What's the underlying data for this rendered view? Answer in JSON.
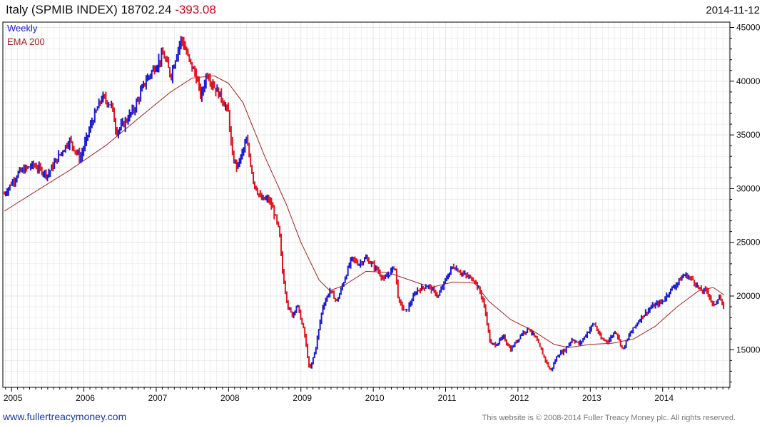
{
  "header": {
    "title": "Italy (SPMIB INDEX)",
    "last": "18702.24",
    "change": "-393.08",
    "date": "2014-11-12"
  },
  "footer": {
    "site": "www.fullertreacymoney.com",
    "copyright": "This website is © 2008-2014 Fuller Treacy Money plc. All rights reserved."
  },
  "colors": {
    "up": "#1a1ad6",
    "down": "#e0141e",
    "ema": "#a82020",
    "grid": "#e4e4e4",
    "axis": "#000000"
  },
  "chart_data": {
    "type": "line",
    "legend": [
      "Weekly",
      "EMA 200"
    ],
    "legend_position": "top-left",
    "x_ticks": [
      "2005",
      "2006",
      "2007",
      "2008",
      "2009",
      "2010",
      "2011",
      "2012",
      "2013",
      "2014"
    ],
    "y_ticks": [
      "15000",
      "20000",
      "25000",
      "30000",
      "35000",
      "40000",
      "45000"
    ],
    "xlim": [
      2004.88,
      2014.93
    ],
    "ylim": [
      11500,
      45500
    ],
    "grid": true,
    "series": [
      {
        "name": "Weekly",
        "style": "ohlc",
        "points": [
          [
            2004.9,
            29500
          ],
          [
            2005.1,
            31500
          ],
          [
            2005.3,
            32200
          ],
          [
            2005.5,
            31300
          ],
          [
            2005.65,
            33000
          ],
          [
            2005.8,
            34500
          ],
          [
            2005.95,
            32800
          ],
          [
            2006.1,
            36000
          ],
          [
            2006.25,
            38500
          ],
          [
            2006.38,
            37800
          ],
          [
            2006.45,
            35300
          ],
          [
            2006.55,
            36000
          ],
          [
            2006.7,
            37500
          ],
          [
            2006.85,
            40000
          ],
          [
            2006.95,
            41000
          ],
          [
            2007.1,
            42500
          ],
          [
            2007.2,
            40500
          ],
          [
            2007.3,
            43000
          ],
          [
            2007.35,
            44000
          ],
          [
            2007.45,
            42000
          ],
          [
            2007.55,
            40500
          ],
          [
            2007.62,
            38500
          ],
          [
            2007.7,
            40800
          ],
          [
            2007.8,
            39500
          ],
          [
            2007.9,
            38500
          ],
          [
            2008.0,
            37000
          ],
          [
            2008.05,
            33000
          ],
          [
            2008.12,
            32000
          ],
          [
            2008.25,
            34500
          ],
          [
            2008.35,
            30500
          ],
          [
            2008.45,
            29000
          ],
          [
            2008.55,
            29000
          ],
          [
            2008.62,
            28000
          ],
          [
            2008.7,
            26000
          ],
          [
            2008.75,
            22000
          ],
          [
            2008.82,
            19000
          ],
          [
            2008.88,
            18200
          ],
          [
            2008.95,
            19200
          ],
          [
            2009.05,
            16500
          ],
          [
            2009.12,
            13000
          ],
          [
            2009.2,
            15000
          ],
          [
            2009.3,
            19000
          ],
          [
            2009.4,
            20500
          ],
          [
            2009.5,
            19500
          ],
          [
            2009.6,
            21500
          ],
          [
            2009.7,
            23500
          ],
          [
            2009.8,
            23000
          ],
          [
            2009.9,
            23500
          ],
          [
            2010.05,
            22500
          ],
          [
            2010.15,
            21500
          ],
          [
            2010.3,
            22800
          ],
          [
            2010.35,
            19500
          ],
          [
            2010.45,
            18500
          ],
          [
            2010.6,
            20500
          ],
          [
            2010.75,
            21000
          ],
          [
            2010.9,
            20000
          ],
          [
            2011.0,
            21500
          ],
          [
            2011.1,
            22800
          ],
          [
            2011.25,
            22000
          ],
          [
            2011.4,
            21500
          ],
          [
            2011.5,
            20000
          ],
          [
            2011.55,
            18500
          ],
          [
            2011.62,
            15500
          ],
          [
            2011.7,
            15500
          ],
          [
            2011.8,
            16200
          ],
          [
            2011.9,
            15000
          ],
          [
            2012.05,
            16500
          ],
          [
            2012.15,
            17000
          ],
          [
            2012.25,
            16000
          ],
          [
            2012.35,
            14500
          ],
          [
            2012.45,
            13000
          ],
          [
            2012.55,
            14500
          ],
          [
            2012.65,
            15000
          ],
          [
            2012.75,
            16000
          ],
          [
            2012.85,
            15500
          ],
          [
            2012.95,
            16500
          ],
          [
            2013.05,
            17500
          ],
          [
            2013.15,
            16000
          ],
          [
            2013.25,
            15800
          ],
          [
            2013.35,
            16800
          ],
          [
            2013.45,
            15000
          ],
          [
            2013.55,
            16500
          ],
          [
            2013.7,
            18000
          ],
          [
            2013.85,
            19000
          ],
          [
            2014.0,
            19500
          ],
          [
            2014.1,
            20500
          ],
          [
            2014.2,
            21200
          ],
          [
            2014.3,
            22000
          ],
          [
            2014.42,
            21500
          ],
          [
            2014.52,
            20500
          ],
          [
            2014.62,
            20500
          ],
          [
            2014.7,
            19000
          ],
          [
            2014.78,
            20000
          ],
          [
            2014.85,
            18700
          ]
        ]
      },
      {
        "name": "EMA 200",
        "style": "line",
        "points": [
          [
            2004.9,
            27900
          ],
          [
            2005.3,
            29600
          ],
          [
            2005.8,
            31700
          ],
          [
            2006.3,
            34000
          ],
          [
            2006.8,
            36800
          ],
          [
            2007.2,
            39000
          ],
          [
            2007.5,
            40300
          ],
          [
            2007.8,
            40500
          ],
          [
            2008.0,
            39800
          ],
          [
            2008.2,
            38000
          ],
          [
            2008.5,
            33000
          ],
          [
            2008.8,
            28500
          ],
          [
            2009.0,
            25000
          ],
          [
            2009.25,
            21500
          ],
          [
            2009.4,
            20500
          ],
          [
            2009.6,
            21000
          ],
          [
            2009.9,
            22300
          ],
          [
            2010.2,
            22200
          ],
          [
            2010.5,
            21500
          ],
          [
            2010.8,
            20800
          ],
          [
            2011.1,
            21300
          ],
          [
            2011.4,
            21200
          ],
          [
            2011.6,
            19500
          ],
          [
            2011.9,
            17800
          ],
          [
            2012.2,
            16800
          ],
          [
            2012.5,
            15500
          ],
          [
            2012.7,
            15200
          ],
          [
            2013.0,
            15500
          ],
          [
            2013.3,
            15600
          ],
          [
            2013.6,
            16000
          ],
          [
            2013.9,
            17200
          ],
          [
            2014.2,
            19000
          ],
          [
            2014.5,
            20500
          ],
          [
            2014.7,
            20800
          ],
          [
            2014.85,
            20100
          ]
        ]
      }
    ]
  }
}
